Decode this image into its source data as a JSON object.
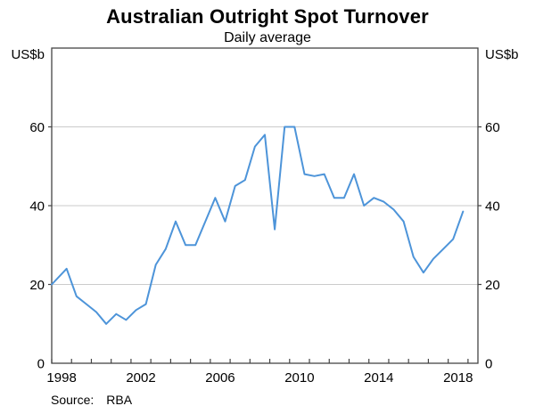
{
  "title": "Australian Outright Spot Turnover",
  "subtitle": "Daily average",
  "source": {
    "label": "Source:",
    "value": "RBA"
  },
  "y_axis": {
    "unit_label_left": "US$b",
    "unit_label_right": "US$b",
    "min": 0,
    "max": 80,
    "gridlines": [
      20,
      40,
      60
    ],
    "tick_labels_left": [
      0,
      20,
      40,
      60
    ],
    "tick_labels_right": [
      0,
      20,
      40,
      60
    ]
  },
  "x_axis": {
    "tick_years": [
      1998,
      1999,
      2000,
      2001,
      2002,
      2003,
      2004,
      2005,
      2006,
      2007,
      2008,
      2009,
      2010,
      2011,
      2012,
      2013,
      2014,
      2015,
      2016,
      2017,
      2018,
      2019
    ],
    "label_years": [
      1998,
      2002,
      2006,
      2010,
      2014,
      2018
    ]
  },
  "colors": {
    "line": "#4D94D9",
    "gridline": "#CBCBCB",
    "axis": "#444444",
    "text": "#000000",
    "background": "#FFFFFF"
  },
  "chart_data": {
    "type": "line",
    "title": "Australian Outright Spot Turnover",
    "subtitle": "Daily average",
    "xlabel": "",
    "ylabel": "US$b",
    "ylim": [
      0,
      80
    ],
    "xlim": [
      1998,
      2019.5
    ],
    "grid": "horizontal gridlines at 20, 40, 60",
    "legend": "none",
    "source": "RBA",
    "series": [
      {
        "name": "Australian outright spot turnover (daily average)",
        "unit": "US$b",
        "x": [
          1998.0,
          1998.75,
          1999.25,
          1999.75,
          2000.25,
          2000.75,
          2001.25,
          2001.75,
          2002.25,
          2002.75,
          2003.25,
          2003.75,
          2004.25,
          2004.75,
          2005.25,
          2005.75,
          2006.25,
          2006.75,
          2007.25,
          2007.75,
          2008.25,
          2008.75,
          2009.25,
          2009.75,
          2010.25,
          2010.75,
          2011.25,
          2011.75,
          2012.25,
          2012.75,
          2013.25,
          2013.75,
          2014.25,
          2014.75,
          2015.25,
          2015.75,
          2016.25,
          2016.75,
          2017.25,
          2017.75,
          2018.25,
          2018.75
        ],
        "y": [
          20,
          24,
          17,
          15,
          13,
          10,
          12.5,
          11,
          13.5,
          15,
          25,
          29,
          36,
          30,
          30,
          36,
          42,
          36,
          45,
          46.5,
          55,
          58,
          34,
          60,
          60,
          48,
          47.5,
          48,
          42,
          42,
          48,
          40,
          42,
          41,
          39,
          36,
          27,
          23,
          26.5,
          29,
          31.5,
          38.5
        ]
      }
    ]
  }
}
